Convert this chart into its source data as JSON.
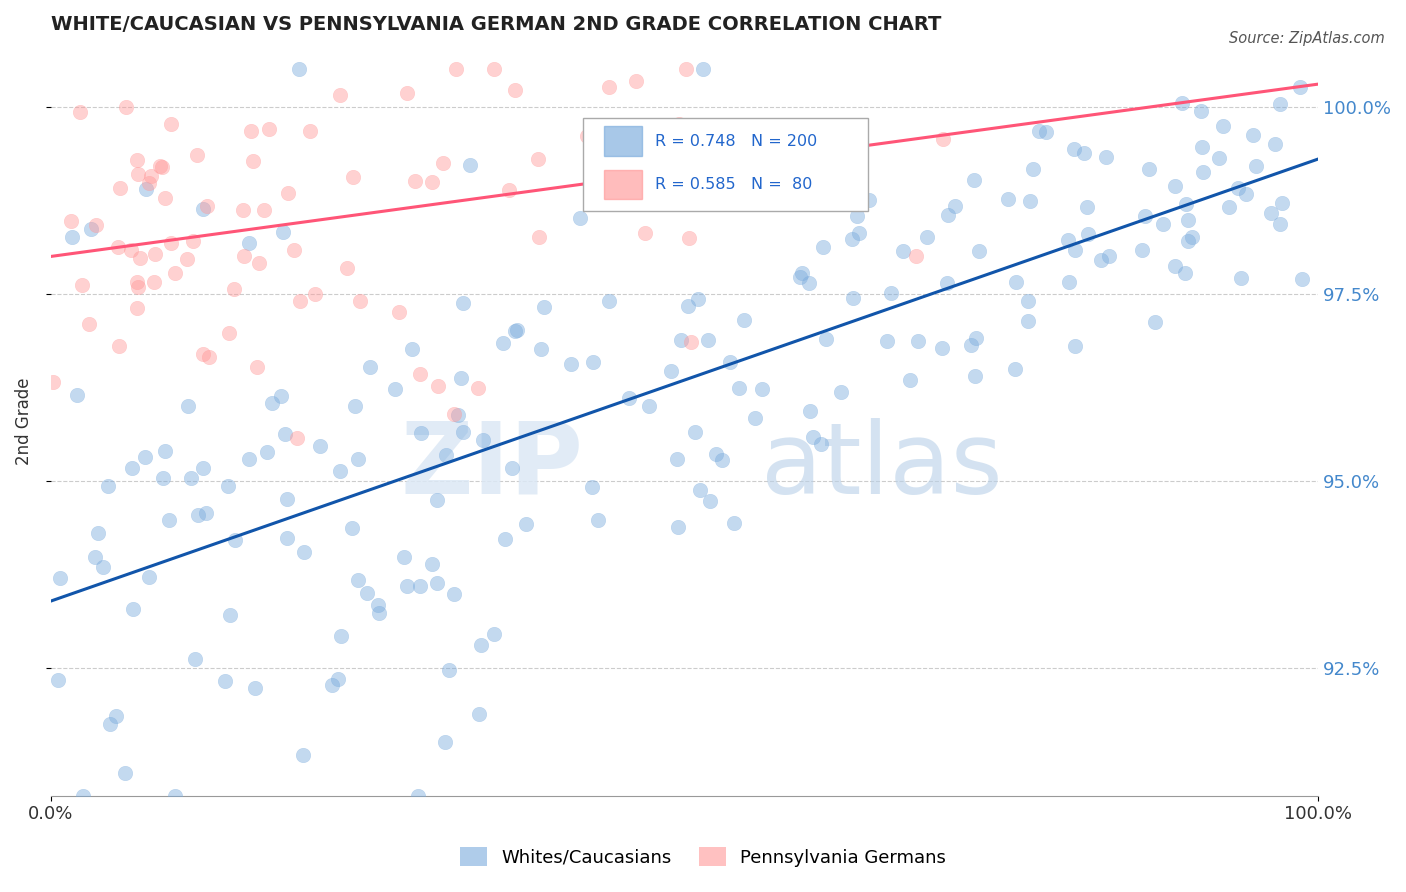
{
  "title": "WHITE/CAUCASIAN VS PENNSYLVANIA GERMAN 2ND GRADE CORRELATION CHART",
  "source": "Source: ZipAtlas.com",
  "ylabel": "2nd Grade",
  "x_min": 0.0,
  "x_max": 1.0,
  "y_min": 0.908,
  "y_max": 1.008,
  "ytick_labels": [
    "92.5%",
    "95.0%",
    "97.5%",
    "100.0%"
  ],
  "ytick_values": [
    0.925,
    0.95,
    0.975,
    1.0
  ],
  "xtick_labels": [
    "0.0%",
    "100.0%"
  ],
  "xtick_values": [
    0.0,
    1.0
  ],
  "blue_R": 0.748,
  "blue_N": 200,
  "pink_R": 0.585,
  "pink_N": 80,
  "blue_color": "#7AABDD",
  "pink_color": "#FF9999",
  "blue_line_color": "#1155AA",
  "pink_line_color": "#FF5577",
  "legend_blue_label": "Whites/Caucasians",
  "legend_pink_label": "Pennsylvania Germans",
  "blue_seed": 42,
  "pink_seed": 13,
  "blue_line_x0": 0.0,
  "blue_line_y0": 0.934,
  "blue_line_x1": 1.0,
  "blue_line_y1": 0.993,
  "pink_line_x0": 0.0,
  "pink_line_y0": 0.98,
  "pink_line_x1": 1.0,
  "pink_line_y1": 1.003
}
